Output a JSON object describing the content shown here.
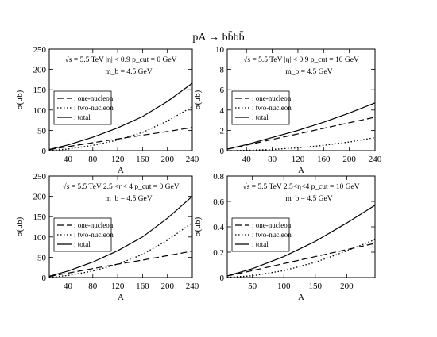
{
  "figure_title": "pA → bb̄bb̄",
  "chart_data": [
    {
      "type": "line",
      "xlabel": "A",
      "ylabel": "σ(μb)",
      "xlim": [
        10,
        240
      ],
      "ylim": [
        0,
        250
      ],
      "xticks": [
        40,
        80,
        120,
        160,
        200,
        240
      ],
      "xtick_labels": [
        "40",
        "80",
        "120",
        "160",
        "200",
        "240"
      ],
      "yticks": [
        0,
        50,
        100,
        150,
        200,
        250
      ],
      "ytick_labels": [
        "0",
        "50",
        "100",
        "150",
        "200",
        "250"
      ],
      "annotation_lines": [
        "√s = 5.5 TeV   |η| < 0.9   p_cut = 0 GeV",
        "m_b = 4.5 GeV"
      ],
      "legend_position": "middle-left",
      "series": [
        {
          "name": ": one-nucleon",
          "style": "dashed",
          "x": [
            10,
            40,
            80,
            120,
            160,
            200,
            240
          ],
          "y": [
            2.5,
            10,
            19.5,
            29,
            38,
            47,
            57
          ]
        },
        {
          "name": ": two-nucleon",
          "style": "dotted",
          "x": [
            10,
            40,
            80,
            120,
            160,
            200,
            240
          ],
          "y": [
            0.5,
            4,
            13,
            26,
            45,
            73,
            108
          ]
        },
        {
          "name": ": total",
          "style": "solid",
          "x": [
            10,
            40,
            80,
            120,
            160,
            200,
            240
          ],
          "y": [
            3,
            14,
            33,
            56,
            84,
            121,
            166
          ]
        }
      ]
    },
    {
      "type": "line",
      "xlabel": "A",
      "ylabel": "σ(μb)",
      "xlim": [
        10,
        240
      ],
      "ylim": [
        0,
        10
      ],
      "xticks": [
        40,
        80,
        120,
        160,
        200,
        240
      ],
      "xtick_labels": [
        "40",
        "80",
        "120",
        "160",
        "200",
        "240"
      ],
      "yticks": [
        0,
        2,
        4,
        6,
        8,
        10
      ],
      "ytick_labels": [
        "0",
        "2",
        "4",
        "6",
        "8",
        "10"
      ],
      "annotation_lines": [
        "√s = 5.5 TeV   |η| < 0.9   p_cut = 10 GeV",
        "m_b = 4.5 GeV"
      ],
      "legend_position": "middle-left",
      "series": [
        {
          "name": ": one-nucleon",
          "style": "dashed",
          "x": [
            10,
            40,
            80,
            120,
            160,
            200,
            240
          ],
          "y": [
            0.14,
            0.55,
            1.1,
            1.65,
            2.2,
            2.75,
            3.3
          ]
        },
        {
          "name": ": two-nucleon",
          "style": "dotted",
          "x": [
            10,
            40,
            80,
            120,
            160,
            200,
            240
          ],
          "y": [
            0.003,
            0.03,
            0.12,
            0.28,
            0.52,
            0.85,
            1.28
          ]
        },
        {
          "name": ": total",
          "style": "solid",
          "x": [
            10,
            40,
            80,
            120,
            160,
            200,
            240
          ],
          "y": [
            0.15,
            0.6,
            1.3,
            2.0,
            2.8,
            3.7,
            4.7
          ]
        }
      ]
    },
    {
      "type": "line",
      "xlabel": "A",
      "ylabel": "σ(μb)",
      "xlim": [
        10,
        240
      ],
      "ylim": [
        0,
        250
      ],
      "xticks": [
        40,
        80,
        120,
        160,
        200,
        240
      ],
      "xtick_labels": [
        "40",
        "80",
        "120",
        "160",
        "200",
        "240"
      ],
      "yticks": [
        0,
        50,
        100,
        150,
        200,
        250
      ],
      "ytick_labels": [
        "0",
        "50",
        "100",
        "150",
        "200",
        "250"
      ],
      "annotation_lines": [
        "√s = 5.5 TeV   2.5 <η< 4   p_cut = 0 GeV",
        "m_b = 4.5 GeV"
      ],
      "legend_position": "middle-left",
      "series": [
        {
          "name": ": one-nucleon",
          "style": "dashed",
          "x": [
            10,
            40,
            80,
            120,
            160,
            200,
            240
          ],
          "y": [
            2.8,
            11,
            22,
            33,
            43,
            54,
            65
          ]
        },
        {
          "name": ": two-nucleon",
          "style": "dotted",
          "x": [
            10,
            40,
            80,
            120,
            160,
            200,
            240
          ],
          "y": [
            0.6,
            5,
            16,
            33,
            57,
            92,
            135
          ]
        },
        {
          "name": ": total",
          "style": "solid",
          "x": [
            10,
            40,
            80,
            120,
            160,
            200,
            240
          ],
          "y": [
            3.4,
            16,
            38,
            66,
            100,
            146,
            200
          ]
        }
      ]
    },
    {
      "type": "line",
      "xlabel": "A",
      "ylabel": "σ(μb)",
      "xlim": [
        10,
        245
      ],
      "ylim": [
        0,
        0.8
      ],
      "xticks": [
        50,
        100,
        150,
        200
      ],
      "xtick_labels": [
        "50",
        "100",
        "150",
        "200"
      ],
      "yticks": [
        0,
        0.2,
        0.4,
        0.6,
        0.8
      ],
      "ytick_labels": [
        "0",
        "0.2",
        "0.4",
        "0.6",
        "0.8"
      ],
      "annotation_lines": [
        "√s = 5.5 TeV   2.5<η<4   p_cut = 10 GeV",
        "m_b = 4.5 GeV"
      ],
      "legend_position": "middle-left",
      "series": [
        {
          "name": ": one-nucleon",
          "style": "dashed",
          "x": [
            10,
            50,
            100,
            150,
            200,
            245
          ],
          "y": [
            0.012,
            0.055,
            0.11,
            0.165,
            0.22,
            0.27
          ]
        },
        {
          "name": ": two-nucleon",
          "style": "dotted",
          "x": [
            10,
            50,
            100,
            150,
            200,
            245
          ],
          "y": [
            0.001,
            0.014,
            0.055,
            0.12,
            0.21,
            0.3
          ]
        },
        {
          "name": ": total",
          "style": "solid",
          "x": [
            10,
            50,
            100,
            150,
            200,
            245
          ],
          "y": [
            0.013,
            0.07,
            0.165,
            0.285,
            0.43,
            0.57
          ]
        }
      ]
    }
  ]
}
